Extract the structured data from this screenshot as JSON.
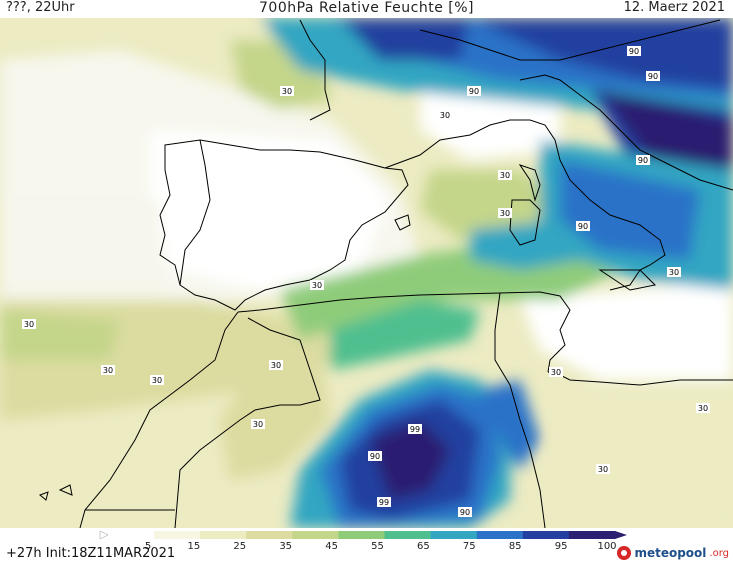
{
  "header": {
    "left": "???, 22Uhr",
    "title": "700hPa Relative Feuchte [%]",
    "right": "12. Maerz 2021"
  },
  "footer": {
    "init": "+27h Init:18Z11MAR2021",
    "logo": "meteopool",
    "logo_suffix": ".org"
  },
  "legend": {
    "ticks": [
      "5",
      "15",
      "25",
      "35",
      "45",
      "55",
      "65",
      "75",
      "85",
      "95",
      "100"
    ],
    "colors": [
      "#ffffff",
      "#f6f6e2",
      "#ecebc2",
      "#dcdca0",
      "#c4d68a",
      "#8fcc7a",
      "#4fbf8f",
      "#33a6c2",
      "#2b72c8",
      "#233f9f",
      "#2a1f70"
    ]
  },
  "map": {
    "contour_labels": [
      "30",
      "30",
      "30",
      "30",
      "30",
      "30",
      "30",
      "30",
      "30",
      "30",
      "30",
      "30",
      "30",
      "30",
      "90",
      "90",
      "90",
      "90",
      "90",
      "90",
      "90",
      "99",
      "99"
    ]
  }
}
